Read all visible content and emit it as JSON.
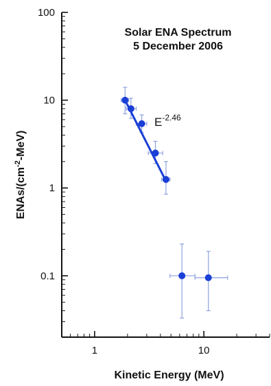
{
  "chart_data": {
    "type": "scatter",
    "title": "Solar ENA Spectrum",
    "subtitle": "5 December 2006",
    "xlabel": "Kinetic Energy (MeV)",
    "ylabel": {
      "prefix": "ENAs/(cm",
      "superscript": "-2",
      "suffix": "-MeV)"
    },
    "x_scale": "log",
    "y_scale": "log",
    "xlim": [
      0.5,
      40
    ],
    "ylim": [
      0.02,
      100
    ],
    "x_ticks": [
      {
        "value": 1,
        "label": "1"
      },
      {
        "value": 10,
        "label": "10"
      }
    ],
    "y_ticks": [
      {
        "value": 0.1,
        "label": "0.1"
      },
      {
        "value": 1,
        "label": "1"
      },
      {
        "value": 10,
        "label": "10"
      },
      {
        "value": 100,
        "label": "100"
      }
    ],
    "grid": false,
    "points": [
      {
        "x": 1.9,
        "y": 10.0,
        "x_err": [
          1.75,
          2.05
        ],
        "y_err": [
          7.0,
          14.0
        ]
      },
      {
        "x": 2.15,
        "y": 8.0,
        "x_err": [
          1.95,
          2.4
        ],
        "y_err": [
          6.2,
          10.5
        ]
      },
      {
        "x": 2.7,
        "y": 5.4,
        "x_err": [
          2.4,
          3.0
        ],
        "y_err": [
          4.3,
          6.8
        ]
      },
      {
        "x": 3.6,
        "y": 2.5,
        "x_err": [
          3.1,
          4.2
        ],
        "y_err": [
          1.9,
          3.4
        ]
      },
      {
        "x": 4.5,
        "y": 1.25,
        "x_err": [
          4.1,
          4.9
        ],
        "y_err": [
          0.85,
          2.0
        ]
      },
      {
        "x": 6.3,
        "y": 0.1,
        "x_err": [
          4.9,
          8.3
        ],
        "y_err": [
          0.033,
          0.23
        ]
      },
      {
        "x": 11.0,
        "y": 0.095,
        "x_err": [
          8.3,
          16.5
        ],
        "y_err": [
          0.04,
          0.19
        ]
      }
    ],
    "fit": {
      "x_range": [
        1.9,
        4.5
      ],
      "exponent": -2.46,
      "label_base": "E",
      "label_exponent": "-2.46",
      "anchor": {
        "x": 1.9,
        "y": 10.0
      }
    },
    "colors": {
      "points": "#1a3fd6",
      "error_bars": "#8ea2e0",
      "fit_line": "#1a3fd6",
      "axes": "#111111"
    }
  }
}
